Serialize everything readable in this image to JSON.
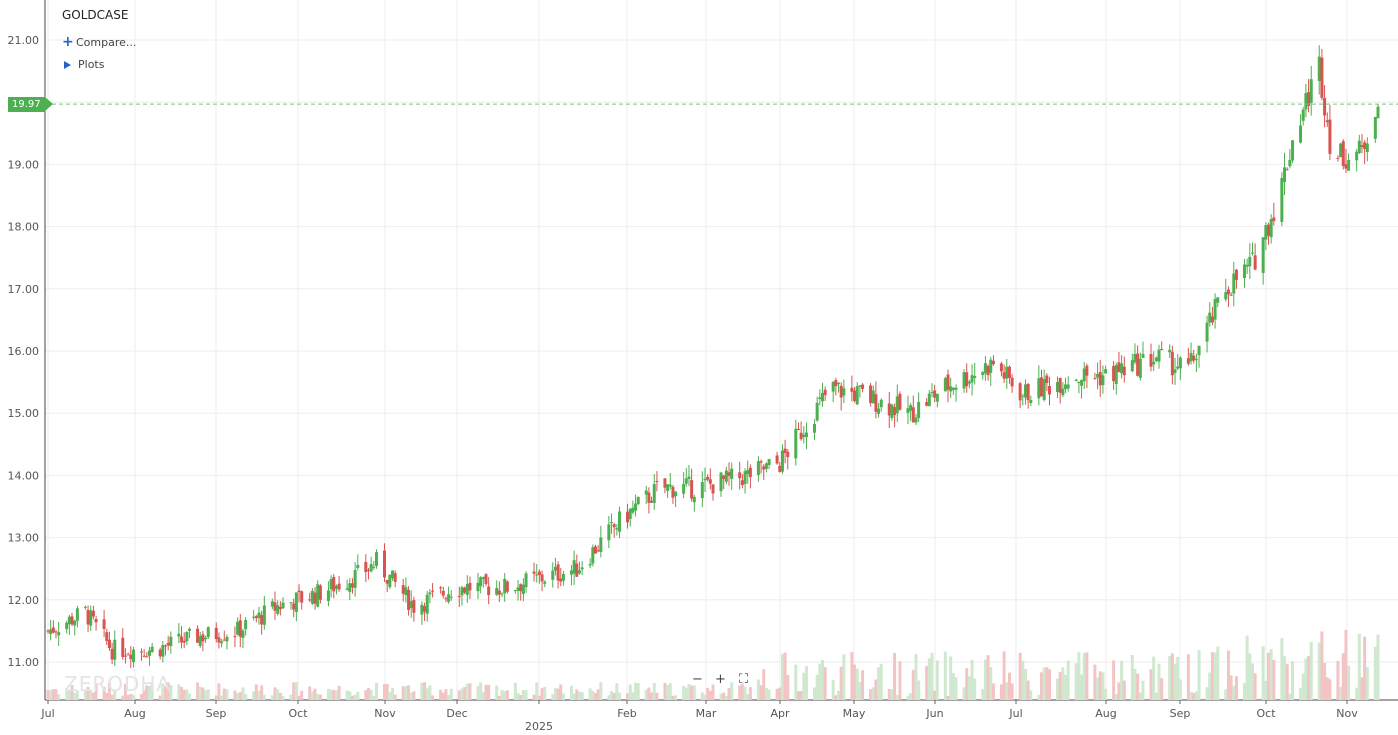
{
  "header": {
    "symbol": "GOLDCASE",
    "compare_label": "Compare...",
    "plots_label": "Plots"
  },
  "price_tag": "19.97",
  "toolbar": {
    "zoom_out": "−",
    "zoom_in": "+",
    "fullscreen": "⛶"
  },
  "watermark": "ZERODHA",
  "colors": {
    "up": "#4caf50",
    "down": "#d9534f",
    "vol_up": "#cfe8cf",
    "vol_down": "#f3c4c4",
    "grid": "#eeeeee"
  },
  "chart_data": {
    "type": "candlestick",
    "title": "GOLDCASE",
    "ylim": [
      10.4,
      21.3
    ],
    "y_ticks": [
      "21.00",
      "20.00",
      "19.00",
      "18.00",
      "17.00",
      "16.00",
      "15.00",
      "14.00",
      "13.00",
      "12.00",
      "11.00"
    ],
    "x_ticks": [
      "Jul",
      "Aug",
      "Sep",
      "Oct",
      "Nov",
      "Dec",
      "2025",
      "Feb",
      "Mar",
      "Apr",
      "May",
      "Jun",
      "Jul",
      "Aug",
      "Sep",
      "Oct",
      "Nov"
    ],
    "last_price": 19.97,
    "grid": true,
    "close_series": [
      {
        "date": "2024-07-01",
        "close": 11.5
      },
      {
        "date": "2024-07-15",
        "close": 11.8
      },
      {
        "date": "2024-07-25",
        "close": 11.2
      },
      {
        "date": "2024-08-10",
        "close": 11.2
      },
      {
        "date": "2024-08-25",
        "close": 11.4
      },
      {
        "date": "2024-09-10",
        "close": 11.5
      },
      {
        "date": "2024-09-25",
        "close": 11.9
      },
      {
        "date": "2024-10-10",
        "close": 12.1
      },
      {
        "date": "2024-10-25",
        "close": 12.4
      },
      {
        "date": "2024-11-01",
        "close": 12.6
      },
      {
        "date": "2024-11-15",
        "close": 11.9
      },
      {
        "date": "2024-12-01",
        "close": 12.2
      },
      {
        "date": "2024-12-20",
        "close": 12.2
      },
      {
        "date": "2025-01-15",
        "close": 12.5
      },
      {
        "date": "2025-02-01",
        "close": 13.3
      },
      {
        "date": "2025-02-15",
        "close": 13.8
      },
      {
        "date": "2025-03-01",
        "close": 13.8
      },
      {
        "date": "2025-03-20",
        "close": 14.0
      },
      {
        "date": "2025-04-01",
        "close": 14.2
      },
      {
        "date": "2025-04-20",
        "close": 15.4
      },
      {
        "date": "2025-05-01",
        "close": 15.3
      },
      {
        "date": "2025-05-20",
        "close": 15.0
      },
      {
        "date": "2025-06-01",
        "close": 15.4
      },
      {
        "date": "2025-06-20",
        "close": 15.8
      },
      {
        "date": "2025-07-01",
        "close": 15.3
      },
      {
        "date": "2025-07-20",
        "close": 15.6
      },
      {
        "date": "2025-08-01",
        "close": 15.6
      },
      {
        "date": "2025-08-20",
        "close": 15.9
      },
      {
        "date": "2025-09-01",
        "close": 15.7
      },
      {
        "date": "2025-09-15",
        "close": 17.0
      },
      {
        "date": "2025-09-25",
        "close": 17.4
      },
      {
        "date": "2025-10-05",
        "close": 18.5
      },
      {
        "date": "2025-10-10",
        "close": 19.4
      },
      {
        "date": "2025-10-20",
        "close": 20.6
      },
      {
        "date": "2025-10-25",
        "close": 19.1
      },
      {
        "date": "2025-11-05",
        "close": 19.2
      },
      {
        "date": "2025-11-10",
        "close": 19.97
      }
    ]
  }
}
